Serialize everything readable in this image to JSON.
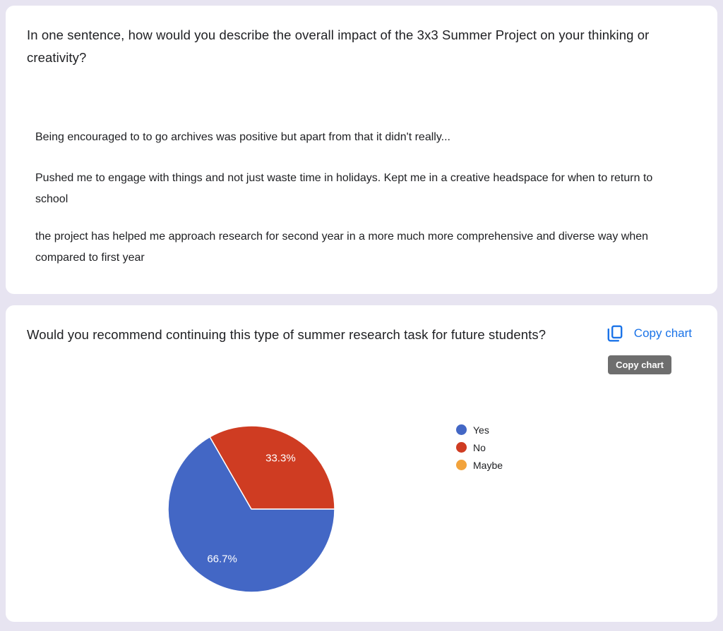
{
  "page": {
    "background_color": "#e7e4f1",
    "card_color": "#ffffff"
  },
  "question1": {
    "title": "In one sentence, how would you describe the overall impact of the 3x3 Summer Project on your thinking or creativity?",
    "responses": [
      "Being encouraged to to go archives was positive but apart from that it didn't really...",
      "Pushed me to engage with things and not just waste time in holidays. Kept me in a creative headspace for when to return to school",
      "the project has helped me approach research for second year in a more much more comprehensive and diverse way when compared to first year"
    ]
  },
  "question2": {
    "title": "Would you recommend continuing this type of summer research task for future students?",
    "copy_chart_label": "Copy chart",
    "tooltip_text": "Copy chart",
    "link_color": "#1a73e8",
    "tooltip_bg": "#6e6e6e"
  },
  "chart_data": {
    "type": "pie",
    "title": "Would you recommend continuing this type of summer research task for future students?",
    "categories": [
      "Yes",
      "No",
      "Maybe"
    ],
    "values": [
      66.7,
      33.3,
      0
    ],
    "slice_labels": [
      "66.7%",
      "33.3%",
      ""
    ],
    "colors": [
      "#4367c5",
      "#cf3c22",
      "#f2a33c"
    ],
    "legend_position": "right",
    "start_angle_deg": 0,
    "direction": "clockwise"
  }
}
